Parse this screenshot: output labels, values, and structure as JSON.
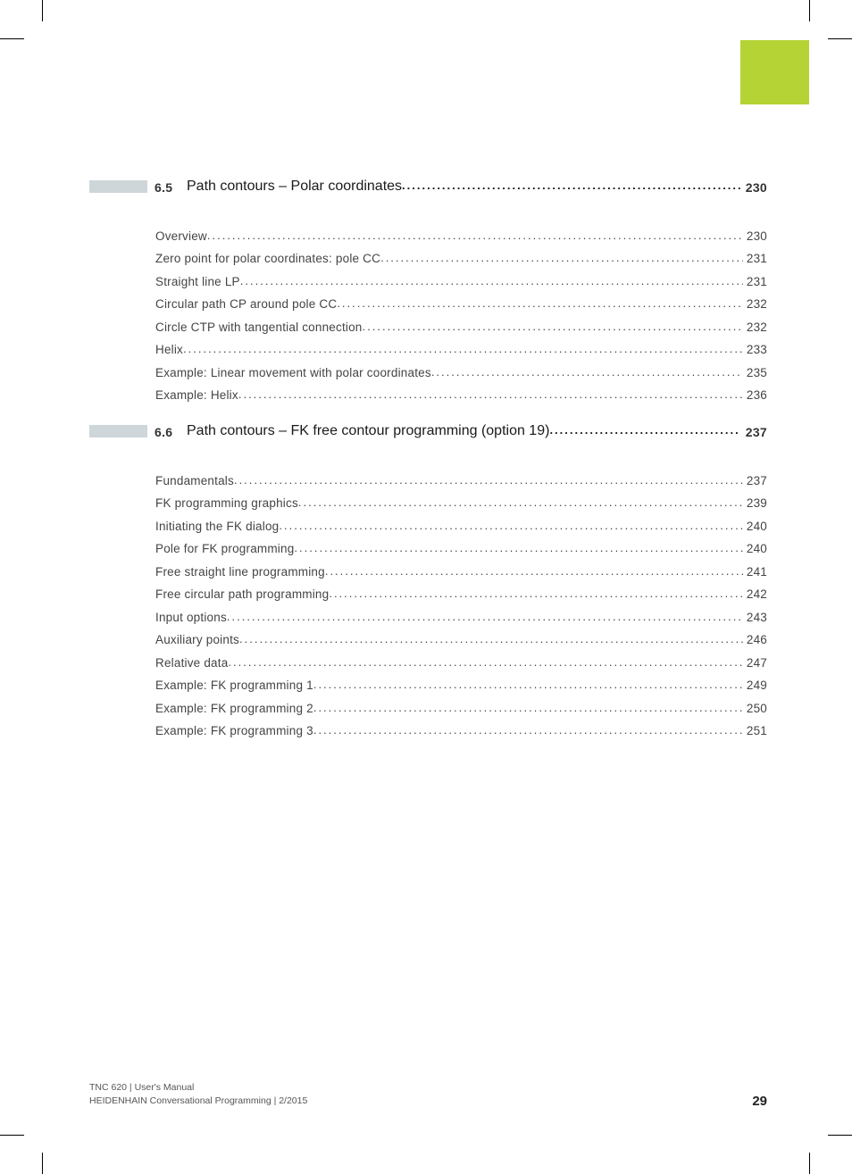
{
  "colors": {
    "tab": "#b5d334",
    "headBar": "#cfd6da",
    "text": "#333333",
    "entryText": "#444444",
    "footerText": "#555555"
  },
  "sections": [
    {
      "num": "6.5",
      "title": "Path contours – Polar coordinates",
      "page": "230",
      "entries": [
        {
          "title": "Overview",
          "page": "230"
        },
        {
          "title": "Zero point for polar coordinates: pole CC",
          "page": "231"
        },
        {
          "title": "Straight line LP",
          "page": "231"
        },
        {
          "title": "Circular path CP around pole CC",
          "page": "232"
        },
        {
          "title": "Circle CTP with tangential connection",
          "page": "232"
        },
        {
          "title": "Helix",
          "page": "233"
        },
        {
          "title": "Example: Linear movement with polar coordinates",
          "page": "235"
        },
        {
          "title": "Example: Helix",
          "page": "236"
        }
      ]
    },
    {
      "num": "6.6",
      "title": "Path contours – FK free contour programming (option 19)",
      "page": "237",
      "entries": [
        {
          "title": "Fundamentals",
          "page": "237"
        },
        {
          "title": "FK programming graphics",
          "page": "239"
        },
        {
          "title": "Initiating the FK dialog",
          "page": "240"
        },
        {
          "title": "Pole for FK programming",
          "page": "240"
        },
        {
          "title": "Free straight line programming",
          "page": "241"
        },
        {
          "title": "Free circular path programming",
          "page": "242"
        },
        {
          "title": "Input options",
          "page": "243"
        },
        {
          "title": "Auxiliary points",
          "page": "246"
        },
        {
          "title": "Relative data",
          "page": "247"
        },
        {
          "title": "Example: FK programming 1",
          "page": "249"
        },
        {
          "title": "Example: FK programming 2",
          "page": "250"
        },
        {
          "title": "Example: FK programming 3",
          "page": "251"
        }
      ]
    }
  ],
  "footer": {
    "line1": "TNC 620 | User's Manual",
    "line2": "HEIDENHAIN Conversational Programming | 2/2015",
    "pageNumber": "29"
  }
}
